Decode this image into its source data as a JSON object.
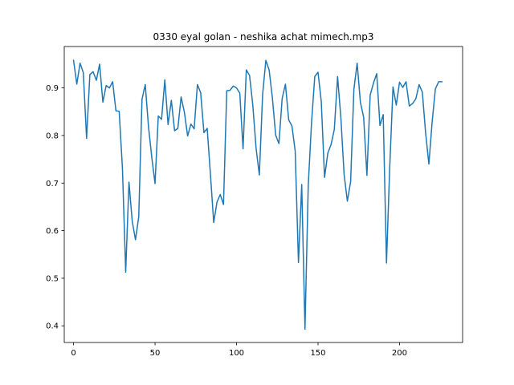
{
  "chart_data": {
    "type": "line",
    "title": "0330 eyal golan - neshika achat mimech.mp3",
    "xlabel": "",
    "ylabel": "",
    "xlim": [
      -5.7,
      238.7
    ],
    "ylim": [
      0.365,
      0.987
    ],
    "xticks": [
      0,
      50,
      100,
      150,
      200
    ],
    "yticks": [
      0.4,
      0.5,
      0.6,
      0.7,
      0.8,
      0.9
    ],
    "ytick_labels": [
      "0.4",
      "0.5",
      "0.6",
      "0.7",
      "0.8",
      "0.9"
    ],
    "grid": false,
    "legend": "none",
    "color": "#1f77b4",
    "series": [
      {
        "x": [
          0,
          2,
          4,
          6,
          8,
          10,
          12,
          14,
          16,
          18,
          20,
          22,
          24,
          26,
          28,
          30,
          32,
          34,
          36,
          38,
          40,
          42,
          44,
          46,
          48,
          50,
          52,
          54,
          56,
          58,
          60,
          62,
          64,
          66,
          68,
          70,
          72,
          74,
          76,
          78,
          80,
          82,
          84,
          86,
          88,
          90,
          92,
          94,
          96,
          98,
          100,
          102,
          104,
          106,
          108,
          110,
          112,
          114,
          116,
          118,
          120,
          122,
          124,
          126,
          128,
          130,
          132,
          134,
          136,
          138,
          140,
          142,
          144,
          146,
          148,
          150,
          152,
          154,
          156,
          158,
          160,
          162,
          164,
          166,
          168,
          170,
          172,
          174,
          176,
          178,
          180,
          182,
          184,
          186,
          188,
          190,
          192,
          194,
          196,
          198,
          200,
          202,
          204,
          206,
          208,
          210,
          212,
          214,
          216,
          218,
          220,
          222,
          224,
          226
        ],
        "y": [
          0.958,
          0.908,
          0.952,
          0.932,
          0.794,
          0.928,
          0.934,
          0.916,
          0.95,
          0.87,
          0.905,
          0.9,
          0.913,
          0.852,
          0.851,
          0.731,
          0.513,
          0.702,
          0.62,
          0.581,
          0.629,
          0.876,
          0.907,
          0.818,
          0.754,
          0.699,
          0.841,
          0.834,
          0.917,
          0.823,
          0.874,
          0.81,
          0.815,
          0.881,
          0.849,
          0.799,
          0.824,
          0.814,
          0.907,
          0.89,
          0.806,
          0.815,
          0.718,
          0.617,
          0.66,
          0.676,
          0.655,
          0.894,
          0.895,
          0.904,
          0.9,
          0.889,
          0.772,
          0.938,
          0.926,
          0.863,
          0.773,
          0.717,
          0.886,
          0.958,
          0.938,
          0.879,
          0.801,
          0.783,
          0.878,
          0.908,
          0.833,
          0.82,
          0.767,
          0.533,
          0.697,
          0.393,
          0.695,
          0.826,
          0.924,
          0.933,
          0.871,
          0.712,
          0.763,
          0.781,
          0.813,
          0.924,
          0.838,
          0.718,
          0.662,
          0.703,
          0.897,
          0.952,
          0.87,
          0.838,
          0.716,
          0.885,
          0.91,
          0.93,
          0.821,
          0.844,
          0.532,
          0.734,
          0.902,
          0.864,
          0.912,
          0.901,
          0.913,
          0.862,
          0.867,
          0.877,
          0.907,
          0.891,
          0.806,
          0.74,
          0.828,
          0.898,
          0.913,
          0.913
        ]
      }
    ]
  }
}
